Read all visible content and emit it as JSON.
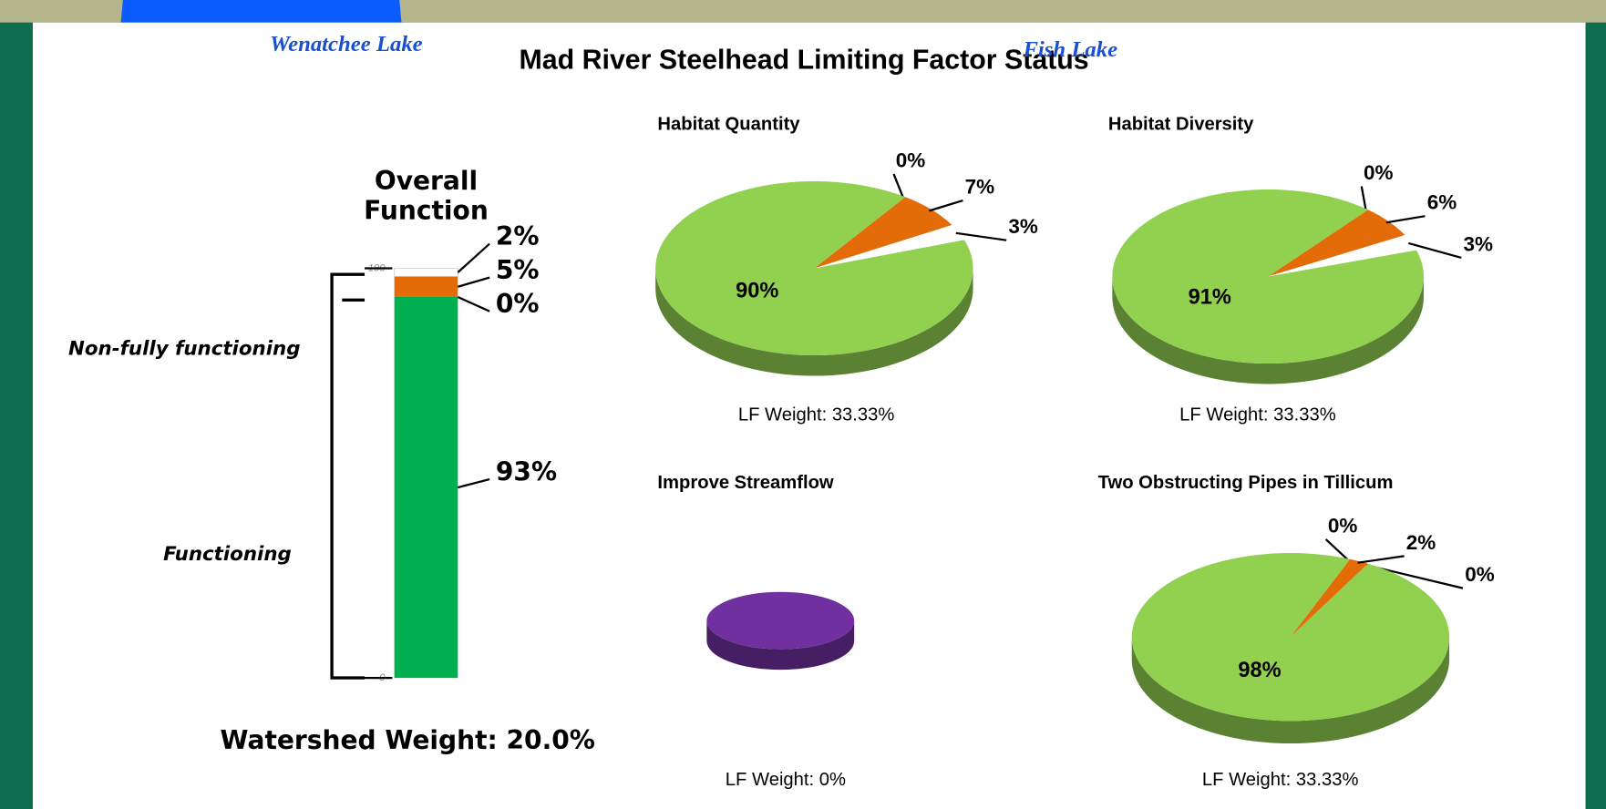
{
  "title": "Mad River  Steelhead Limiting Factor Status",
  "background_labels": [
    "Wenatchee Lake",
    "Fish Lake"
  ],
  "chart_data": [
    {
      "type": "stacked_bar",
      "title": "Overall Function",
      "series": [
        {
          "color": "#00b050",
          "values": [
            93
          ],
          "value_labels": [
            "93%"
          ]
        },
        {
          "color": "#ffff00",
          "values": [
            0
          ],
          "value_labels": [
            "0%"
          ]
        },
        {
          "color": "#e36c09",
          "values": [
            5
          ],
          "value_labels": [
            "5%"
          ]
        },
        {
          "color": "#ffffff",
          "values": [
            2
          ],
          "value_labels": [
            "2%"
          ]
        }
      ],
      "ylim": [
        0,
        100
      ],
      "yticks": [
        0,
        100
      ],
      "annotations": [
        "Non-fully functioning",
        "Functioning"
      ],
      "footer": "Watershed Weight:  20.0%"
    },
    {
      "type": "pie",
      "title": "Habitat Quantity",
      "values": [
        0,
        7,
        3,
        90
      ],
      "value_labels": [
        "0%",
        "7%",
        "3%",
        "90%"
      ],
      "colors": [
        "#c00000",
        "#e36c09",
        "#ffffff",
        "#92d050"
      ],
      "footer": "LF Weight:  33.33%"
    },
    {
      "type": "pie",
      "title": "Habitat Diversity",
      "values": [
        0,
        6,
        3,
        91
      ],
      "value_labels": [
        "0%",
        "6%",
        "3%",
        "91%"
      ],
      "colors": [
        "#c00000",
        "#e36c09",
        "#ffffff",
        "#92d050"
      ],
      "footer": "LF Weight:  33.33%"
    },
    {
      "type": "pie",
      "title": "Improve Streamflow",
      "values": [
        100
      ],
      "colors": [
        "#7030a0"
      ],
      "footer": "LF Weight:  0%"
    },
    {
      "type": "pie",
      "title": "Two Obstructing Pipes in Tillicum",
      "values": [
        0,
        2,
        0,
        98
      ],
      "value_labels": [
        "0%",
        "2%",
        "0%",
        "98%"
      ],
      "colors": [
        "#c00000",
        "#e36c09",
        "#ffffff",
        "#92d050"
      ],
      "footer": "LF Weight:  33.33%"
    }
  ]
}
